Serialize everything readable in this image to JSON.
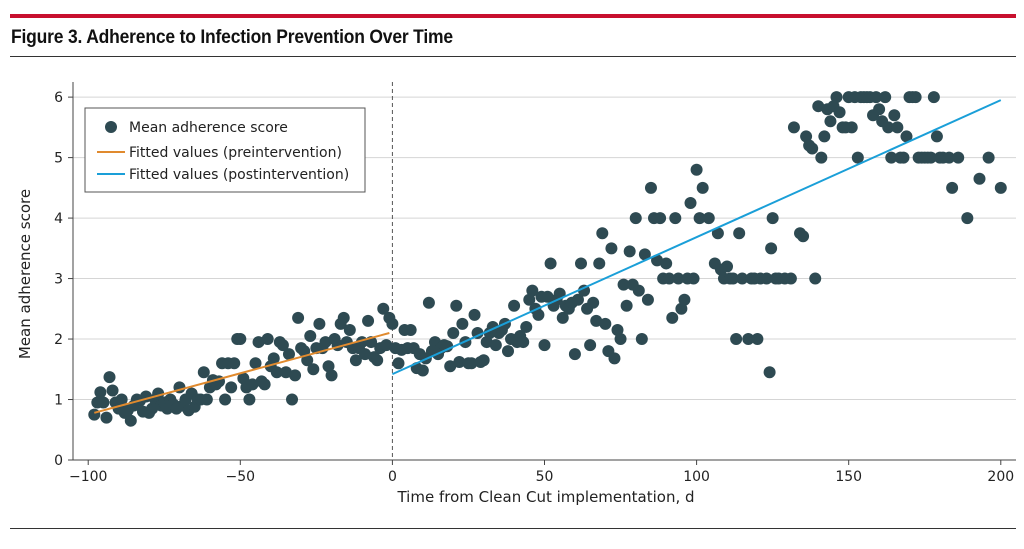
{
  "figure": {
    "title": "Figure 3. Adherence to Infection Prevention Over Time"
  },
  "chart_data": {
    "type": "scatter",
    "title": "",
    "xlabel": "Time from Clean Cut implementation, d",
    "ylabel": "Mean adherence score",
    "xlim": [
      -105,
      205
    ],
    "ylim": [
      0,
      6.25
    ],
    "xticks": [
      -100,
      -50,
      0,
      50,
      100,
      150,
      200
    ],
    "xtick_labels": [
      "−100",
      "−50",
      "0",
      "50",
      "100",
      "150",
      "200"
    ],
    "yticks": [
      0,
      1,
      2,
      3,
      4,
      5,
      6
    ],
    "ytick_labels": [
      "0",
      "1",
      "2",
      "3",
      "4",
      "5",
      "6"
    ],
    "grid": true,
    "legend_position": "top-left",
    "reference_line": {
      "x": 0,
      "style": "dashed"
    },
    "colors": {
      "points": "#2e4a52",
      "pre_fit": "#e08a2e",
      "post_fit": "#1a9fd8",
      "grid": "#d5d5d5",
      "accent_rule": "#c8102e"
    },
    "series": [
      {
        "name": "Mean adherence score",
        "kind": "scatter",
        "points": [
          [
            -98,
            0.75
          ],
          [
            -97,
            0.95
          ],
          [
            -96,
            1.12
          ],
          [
            -95,
            0.95
          ],
          [
            -94,
            0.7
          ],
          [
            -93,
            1.37
          ],
          [
            -92,
            1.15
          ],
          [
            -91,
            0.95
          ],
          [
            -90,
            0.85
          ],
          [
            -89,
            1.0
          ],
          [
            -88,
            0.78
          ],
          [
            -87,
            0.82
          ],
          [
            -86,
            0.65
          ],
          [
            -85,
            0.9
          ],
          [
            -84,
            1.0
          ],
          [
            -83,
            0.98
          ],
          [
            -82,
            0.8
          ],
          [
            -81,
            1.05
          ],
          [
            -80,
            0.78
          ],
          [
            -79,
            0.85
          ],
          [
            -78,
            1.0
          ],
          [
            -77,
            1.1
          ],
          [
            -76,
            0.9
          ],
          [
            -75,
            0.95
          ],
          [
            -74,
            0.85
          ],
          [
            -73,
            1.0
          ],
          [
            -72,
            0.92
          ],
          [
            -71,
            0.85
          ],
          [
            -70,
            1.2
          ],
          [
            -69,
            0.9
          ],
          [
            -68,
            1.0
          ],
          [
            -67,
            0.82
          ],
          [
            -66,
            1.1
          ],
          [
            -65,
            0.88
          ],
          [
            -64,
            1.0
          ],
          [
            -63,
            1.0
          ],
          [
            -62,
            1.45
          ],
          [
            -61,
            1.0
          ],
          [
            -60,
            1.2
          ],
          [
            -59,
            1.32
          ],
          [
            -58,
            1.25
          ],
          [
            -57,
            1.3
          ],
          [
            -56,
            1.6
          ],
          [
            -55,
            1.0
          ],
          [
            -54,
            1.6
          ],
          [
            -53,
            1.2
          ],
          [
            -52,
            1.6
          ],
          [
            -51,
            2.0
          ],
          [
            -50,
            2.0
          ],
          [
            -49,
            1.35
          ],
          [
            -48,
            1.2
          ],
          [
            -47,
            1.0
          ],
          [
            -46,
            1.25
          ],
          [
            -45,
            1.6
          ],
          [
            -44,
            1.95
          ],
          [
            -43,
            1.3
          ],
          [
            -42,
            1.25
          ],
          [
            -41,
            2.0
          ],
          [
            -40,
            1.55
          ],
          [
            -39,
            1.68
          ],
          [
            -38,
            1.45
          ],
          [
            -37,
            1.95
          ],
          [
            -36,
            1.9
          ],
          [
            -35,
            1.45
          ],
          [
            -34,
            1.75
          ],
          [
            -33,
            1.0
          ],
          [
            -32,
            1.4
          ],
          [
            -31,
            2.35
          ],
          [
            -30,
            1.85
          ],
          [
            -29,
            1.8
          ],
          [
            -28,
            1.65
          ],
          [
            -27,
            2.05
          ],
          [
            -26,
            1.5
          ],
          [
            -25,
            1.85
          ],
          [
            -24,
            2.25
          ],
          [
            -23,
            1.85
          ],
          [
            -22,
            1.95
          ],
          [
            -21,
            1.55
          ],
          [
            -20,
            1.4
          ],
          [
            -19,
            2.0
          ],
          [
            -18,
            1.9
          ],
          [
            -17,
            2.25
          ],
          [
            -16,
            2.35
          ],
          [
            -15,
            1.95
          ],
          [
            -14,
            2.15
          ],
          [
            -13,
            1.85
          ],
          [
            -12,
            1.65
          ],
          [
            -11,
            1.85
          ],
          [
            -10,
            1.95
          ],
          [
            -9,
            1.75
          ],
          [
            -8,
            2.3
          ],
          [
            -7,
            1.95
          ],
          [
            -6,
            1.7
          ],
          [
            -5,
            1.65
          ],
          [
            -4,
            1.85
          ],
          [
            -3,
            2.5
          ],
          [
            -2,
            1.9
          ],
          [
            -1,
            2.35
          ],
          [
            0,
            2.25
          ],
          [
            1,
            1.85
          ],
          [
            2,
            1.6
          ],
          [
            3,
            1.82
          ],
          [
            4,
            2.15
          ],
          [
            5,
            1.85
          ],
          [
            6,
            2.15
          ],
          [
            7,
            1.85
          ],
          [
            8,
            1.52
          ],
          [
            9,
            1.75
          ],
          [
            10,
            1.48
          ],
          [
            11,
            1.68
          ],
          [
            12,
            2.6
          ],
          [
            13,
            1.8
          ],
          [
            14,
            1.95
          ],
          [
            15,
            1.75
          ],
          [
            16,
            1.85
          ],
          [
            17,
            1.9
          ],
          [
            18,
            1.88
          ],
          [
            19,
            1.55
          ],
          [
            20,
            2.1
          ],
          [
            21,
            2.55
          ],
          [
            22,
            1.62
          ],
          [
            23,
            2.25
          ],
          [
            24,
            1.95
          ],
          [
            25,
            1.6
          ],
          [
            26,
            1.6
          ],
          [
            27,
            2.4
          ],
          [
            28,
            2.1
          ],
          [
            29,
            1.62
          ],
          [
            30,
            1.65
          ],
          [
            31,
            1.95
          ],
          [
            32,
            2.1
          ],
          [
            33,
            2.2
          ],
          [
            34,
            1.9
          ],
          [
            35,
            2.1
          ],
          [
            36,
            2.15
          ],
          [
            37,
            2.25
          ],
          [
            38,
            1.8
          ],
          [
            39,
            2.0
          ],
          [
            40,
            2.55
          ],
          [
            41,
            1.95
          ],
          [
            42,
            2.05
          ],
          [
            43,
            1.95
          ],
          [
            44,
            2.2
          ],
          [
            45,
            2.65
          ],
          [
            46,
            2.8
          ],
          [
            47,
            2.5
          ],
          [
            48,
            2.4
          ],
          [
            49,
            2.7
          ],
          [
            50,
            1.9
          ],
          [
            51,
            2.7
          ],
          [
            52,
            3.25
          ],
          [
            53,
            2.55
          ],
          [
            54,
            2.65
          ],
          [
            55,
            2.75
          ],
          [
            56,
            2.35
          ],
          [
            57,
            2.55
          ],
          [
            58,
            2.5
          ],
          [
            59,
            2.6
          ],
          [
            60,
            1.75
          ],
          [
            61,
            2.65
          ],
          [
            62,
            3.25
          ],
          [
            63,
            2.8
          ],
          [
            64,
            2.5
          ],
          [
            65,
            1.9
          ],
          [
            66,
            2.6
          ],
          [
            67,
            2.3
          ],
          [
            68,
            3.25
          ],
          [
            69,
            3.75
          ],
          [
            70,
            2.25
          ],
          [
            71,
            1.8
          ],
          [
            72,
            3.5
          ],
          [
            73,
            1.68
          ],
          [
            74,
            2.15
          ],
          [
            75,
            2.0
          ],
          [
            76,
            2.9
          ],
          [
            77,
            2.55
          ],
          [
            78,
            3.45
          ],
          [
            79,
            2.9
          ],
          [
            80,
            4.0
          ],
          [
            81,
            2.8
          ],
          [
            82,
            2.0
          ],
          [
            83,
            3.4
          ],
          [
            84,
            2.65
          ],
          [
            85,
            4.5
          ],
          [
            86,
            4.0
          ],
          [
            87,
            3.3
          ],
          [
            88,
            4.0
          ],
          [
            89,
            3.0
          ],
          [
            90,
            3.25
          ],
          [
            91,
            3.0
          ],
          [
            92,
            2.35
          ],
          [
            93,
            4.0
          ],
          [
            94,
            3.0
          ],
          [
            95,
            2.5
          ],
          [
            96,
            2.65
          ],
          [
            97,
            3.0
          ],
          [
            98,
            4.25
          ],
          [
            99,
            3.0
          ],
          [
            100,
            4.8
          ],
          [
            101,
            4.0
          ],
          [
            102,
            4.5
          ],
          [
            104,
            4.0
          ],
          [
            106,
            3.25
          ],
          [
            107,
            3.75
          ],
          [
            108,
            3.15
          ],
          [
            109,
            3.0
          ],
          [
            110,
            3.2
          ],
          [
            111,
            3.0
          ],
          [
            112,
            3.0
          ],
          [
            113,
            2.0
          ],
          [
            114,
            3.75
          ],
          [
            115,
            3.0
          ],
          [
            117,
            2.0
          ],
          [
            118,
            3.0
          ],
          [
            119,
            3.0
          ],
          [
            120,
            2.0
          ],
          [
            121,
            3.0
          ],
          [
            123,
            3.0
          ],
          [
            124,
            1.45
          ],
          [
            124.5,
            3.5
          ],
          [
            125,
            4.0
          ],
          [
            126,
            3.0
          ],
          [
            127,
            3.0
          ],
          [
            129,
            3.0
          ],
          [
            131,
            3.0
          ],
          [
            132,
            5.5
          ],
          [
            134,
            3.75
          ],
          [
            135,
            3.7
          ],
          [
            136,
            5.35
          ],
          [
            137,
            5.2
          ],
          [
            138,
            5.15
          ],
          [
            139,
            3.0
          ],
          [
            140,
            5.85
          ],
          [
            141,
            5.0
          ],
          [
            142,
            5.35
          ],
          [
            143,
            5.8
          ],
          [
            144,
            5.6
          ],
          [
            145,
            5.85
          ],
          [
            146,
            6.0
          ],
          [
            147,
            5.75
          ],
          [
            148,
            5.5
          ],
          [
            149,
            5.5
          ],
          [
            150,
            6.0
          ],
          [
            151,
            5.5
          ],
          [
            152,
            6.0
          ],
          [
            153,
            5.0
          ],
          [
            154,
            6.0
          ],
          [
            155,
            6.0
          ],
          [
            156,
            6.0
          ],
          [
            157,
            6.0
          ],
          [
            158,
            5.7
          ],
          [
            159,
            6.0
          ],
          [
            160,
            5.8
          ],
          [
            161,
            5.6
          ],
          [
            162,
            6.0
          ],
          [
            163,
            5.5
          ],
          [
            164,
            5.0
          ],
          [
            165,
            5.7
          ],
          [
            166,
            5.5
          ],
          [
            167,
            5.0
          ],
          [
            168,
            5.0
          ],
          [
            169,
            5.35
          ],
          [
            170,
            6.0
          ],
          [
            171,
            6.0
          ],
          [
            172,
            6.0
          ],
          [
            173,
            5.0
          ],
          [
            174,
            5.0
          ],
          [
            175,
            5.0
          ],
          [
            176,
            5.0
          ],
          [
            177,
            5.0
          ],
          [
            178,
            6.0
          ],
          [
            179,
            5.35
          ],
          [
            180,
            5.0
          ],
          [
            181,
            5.0
          ],
          [
            183,
            5.0
          ],
          [
            184,
            4.5
          ],
          [
            186,
            5.0
          ],
          [
            189,
            4.0
          ],
          [
            193,
            4.65
          ],
          [
            196,
            5.0
          ],
          [
            200,
            4.5
          ]
        ]
      },
      {
        "name": "Fitted values (preintervention)",
        "kind": "line",
        "points": [
          [
            -98,
            0.78
          ],
          [
            -1,
            2.1
          ]
        ]
      },
      {
        "name": "Fitted values (postintervention)",
        "kind": "line",
        "points": [
          [
            0,
            1.42
          ],
          [
            200,
            5.95
          ]
        ]
      }
    ]
  }
}
